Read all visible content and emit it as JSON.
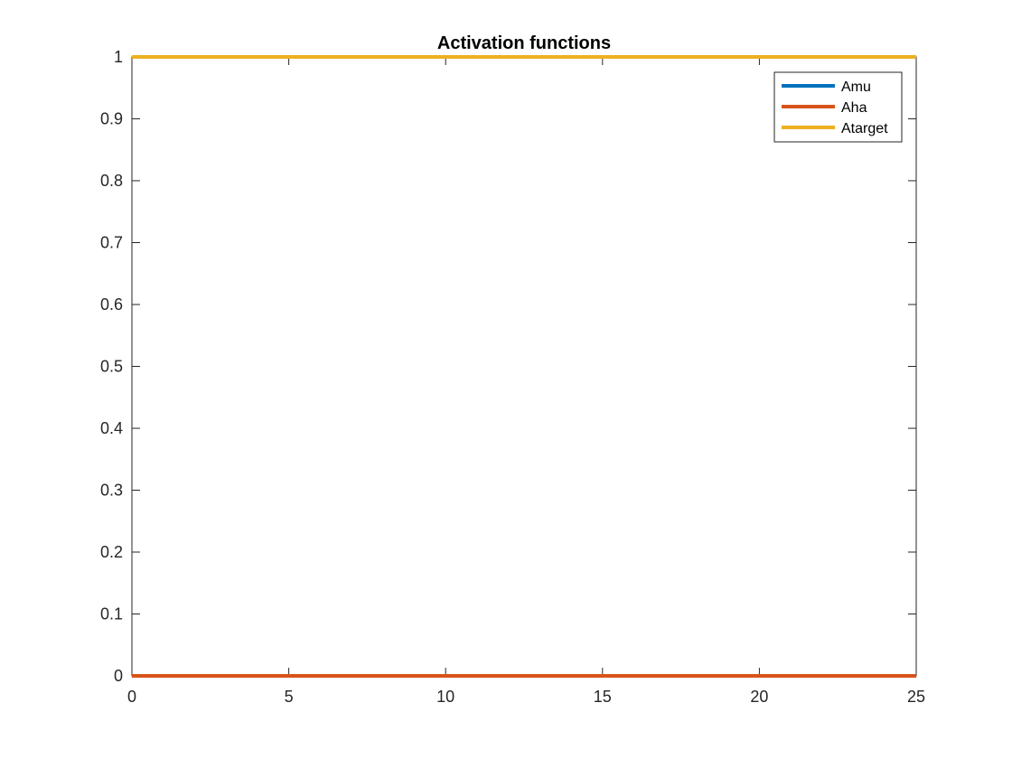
{
  "chart_data": {
    "type": "line",
    "title": "Activation functions",
    "xlabel": "",
    "ylabel": "",
    "xlim": [
      0,
      25
    ],
    "ylim": [
      0,
      1
    ],
    "xticks": [
      0,
      5,
      10,
      15,
      20,
      25
    ],
    "xtick_labels": [
      "0",
      "5",
      "10",
      "15",
      "20",
      "25"
    ],
    "yticks": [
      0,
      0.1,
      0.2,
      0.3,
      0.4,
      0.5,
      0.6,
      0.7,
      0.8,
      0.9,
      1
    ],
    "ytick_labels": [
      "0",
      "0.1",
      "0.2",
      "0.3",
      "0.4",
      "0.5",
      "0.6",
      "0.7",
      "0.8",
      "0.9",
      "1"
    ],
    "grid": false,
    "legend_position": "top-right",
    "series": [
      {
        "name": "Amu",
        "color": "#0072BD",
        "x": [
          0,
          25
        ],
        "y": [
          0,
          0
        ]
      },
      {
        "name": "Aha",
        "color": "#D95319",
        "x": [
          0,
          25
        ],
        "y": [
          0,
          0
        ]
      },
      {
        "name": "Atarget",
        "color": "#EDB120",
        "x": [
          0,
          25
        ],
        "y": [
          1,
          1
        ]
      }
    ]
  }
}
